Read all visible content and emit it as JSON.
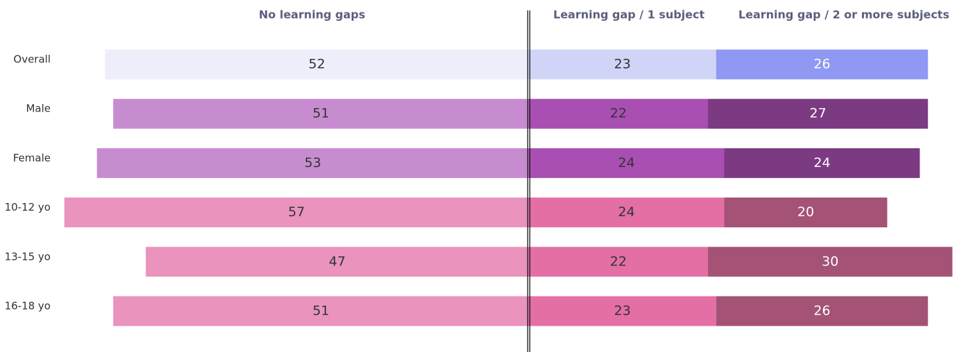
{
  "chart_data": {
    "type": "diverging_bar",
    "categories": [
      "Overall",
      "Male",
      "Female",
      "10-12 yo",
      "13-15 yo",
      "16-18 yo"
    ],
    "series": [
      {
        "name": "No learning gaps",
        "side": "left",
        "label_color": "#333333",
        "values": [
          52,
          51,
          53,
          57,
          47,
          51
        ],
        "colors": [
          "#eeeefa",
          "#c78ccf",
          "#c78ccf",
          "#e993bd",
          "#e993bd",
          "#e993bd"
        ]
      },
      {
        "name": "Learning gap / 1 subject",
        "side": "right",
        "label_color": "#333333",
        "values": [
          23,
          22,
          24,
          24,
          22,
          23
        ],
        "colors": [
          "#d0d4f7",
          "#a94fb3",
          "#a94fb3",
          "#e36fa5",
          "#e36fa5",
          "#e36fa5"
        ]
      },
      {
        "name": "Learning gap / 2 or more subjects",
        "side": "right",
        "label_color": "#ffffff",
        "values": [
          26,
          27,
          24,
          20,
          30,
          26
        ],
        "colors": [
          "#8f98f2",
          "#7b3a82",
          "#7b3a82",
          "#a45275",
          "#a45275",
          "#a45275"
        ]
      }
    ]
  }
}
